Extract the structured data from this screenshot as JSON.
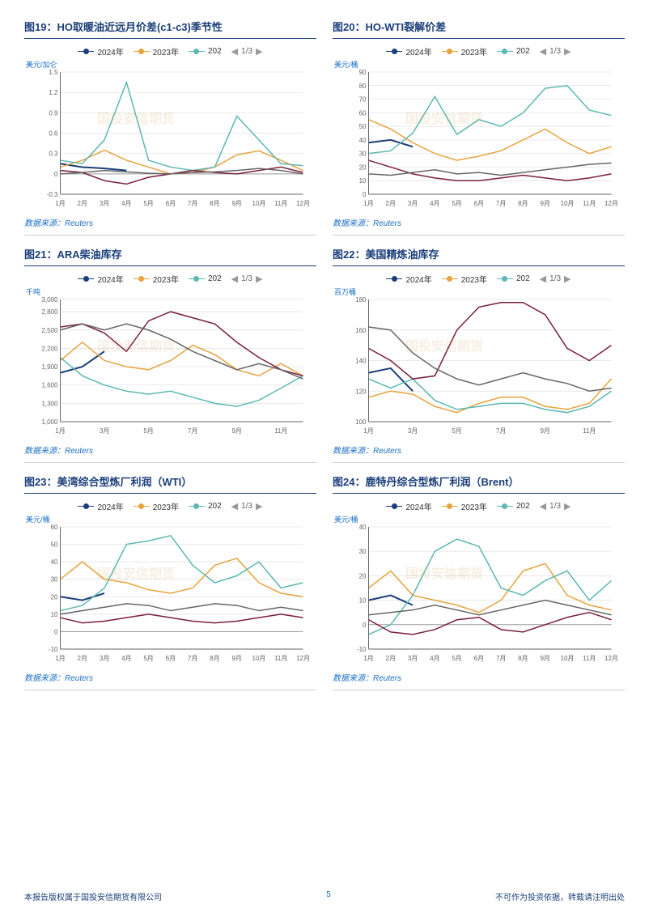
{
  "legend": {
    "s1": "2024年",
    "s2": "2023年",
    "s3": "202",
    "page": "1/3",
    "colors": {
      "s1": "#1a3e7a",
      "s2": "#e8a33d",
      "s3": "#5cb8b2",
      "s4": "#7a1f3d",
      "s5": "#666666"
    }
  },
  "source_label": "数据来源：Reuters",
  "footer": {
    "left": "本报告版权属于国投安信期货有限公司",
    "page": "5",
    "right": "不可作为投资依据，转载请注明出处"
  },
  "watermark": "国投安信期货",
  "months12": [
    "1月",
    "2月",
    "3月",
    "4月",
    "5月",
    "6月",
    "7月",
    "8月",
    "9月",
    "10月",
    "11月",
    "12月"
  ],
  "months6": [
    "1月",
    "3月",
    "5月",
    "7月",
    "9月",
    "11月"
  ],
  "charts": [
    {
      "id": "fig19",
      "title": "图19：HO取暖油近远月价差(c1-c3)季节性",
      "ylabel": "美元/加仑",
      "ylim": [
        -0.3,
        1.5
      ],
      "yticks": [
        -0.3,
        0,
        0.3,
        0.6,
        0.9,
        1.2,
        1.5
      ],
      "xlabels_key": "months12",
      "series": [
        {
          "color": "#1a3e7a",
          "pts": [
            0.15,
            0.1,
            0.08,
            0.05,
            null,
            null,
            null,
            null,
            null,
            null,
            null,
            null
          ],
          "w": 2
        },
        {
          "color": "#e8a33d",
          "pts": [
            0.1,
            0.2,
            0.35,
            0.2,
            0.1,
            0.0,
            0.02,
            0.1,
            0.28,
            0.34,
            0.2,
            0.05
          ],
          "w": 1.5
        },
        {
          "color": "#5cb8b2",
          "pts": [
            0.2,
            0.15,
            0.5,
            1.35,
            0.2,
            0.1,
            0.05,
            0.1,
            0.85,
            0.5,
            0.15,
            0.12
          ],
          "w": 1.5
        },
        {
          "color": "#7a1f3d",
          "pts": [
            0.05,
            0.02,
            -0.1,
            -0.15,
            -0.05,
            0.0,
            0.05,
            0.02,
            0.0,
            0.05,
            0.1,
            0.02
          ],
          "w": 1.5
        },
        {
          "color": "#666666",
          "pts": [
            0.0,
            0.02,
            0.05,
            0.03,
            0.01,
            0.0,
            0.02,
            0.03,
            0.05,
            0.08,
            0.05,
            0.0
          ],
          "w": 1.5
        }
      ]
    },
    {
      "id": "fig20",
      "title": "图20：HO-WTI裂解价差",
      "ylabel": "美元/桶",
      "ylim": [
        0,
        90
      ],
      "yticks": [
        0,
        10,
        20,
        30,
        40,
        50,
        60,
        70,
        80,
        90
      ],
      "xlabels_key": "months12",
      "series": [
        {
          "color": "#1a3e7a",
          "pts": [
            38,
            40,
            35,
            null,
            null,
            null,
            null,
            null,
            null,
            null,
            null,
            null
          ],
          "w": 2
        },
        {
          "color": "#e8a33d",
          "pts": [
            55,
            48,
            38,
            30,
            25,
            28,
            32,
            40,
            48,
            38,
            30,
            35
          ],
          "w": 1.5
        },
        {
          "color": "#5cb8b2",
          "pts": [
            30,
            32,
            45,
            72,
            44,
            55,
            50,
            60,
            78,
            80,
            62,
            58
          ],
          "w": 1.5
        },
        {
          "color": "#7a1f3d",
          "pts": [
            25,
            20,
            15,
            12,
            10,
            10,
            12,
            14,
            12,
            10,
            12,
            15
          ],
          "w": 1.5
        },
        {
          "color": "#666666",
          "pts": [
            15,
            14,
            16,
            18,
            15,
            16,
            14,
            16,
            18,
            20,
            22,
            23
          ],
          "w": 1.5
        }
      ]
    },
    {
      "id": "fig21",
      "title": "图21：ARA柴油库存",
      "ylabel": "千吨",
      "ylim": [
        1000,
        3000
      ],
      "yticks": [
        1000,
        1300,
        1600,
        1900,
        2200,
        2500,
        2800,
        3000
      ],
      "xlabels_key": "months6",
      "series": [
        {
          "color": "#1a3e7a",
          "pts": [
            1800,
            1900,
            2150,
            null,
            null,
            null,
            null,
            null,
            null,
            null,
            null,
            null
          ],
          "w": 2
        },
        {
          "color": "#e8a33d",
          "pts": [
            2000,
            2300,
            2000,
            1900,
            1850,
            2000,
            2250,
            2100,
            1850,
            1750,
            1950,
            1750
          ],
          "w": 1.5
        },
        {
          "color": "#5cb8b2",
          "pts": [
            2050,
            1750,
            1600,
            1500,
            1450,
            1500,
            1400,
            1300,
            1250,
            1350,
            1550,
            1750
          ],
          "w": 1.5
        },
        {
          "color": "#7a1f3d",
          "pts": [
            2550,
            2600,
            2450,
            2150,
            2650,
            2800,
            2700,
            2600,
            2300,
            2050,
            1850,
            1750
          ],
          "w": 1.5
        },
        {
          "color": "#666666",
          "pts": [
            2500,
            2600,
            2500,
            2600,
            2500,
            2350,
            2150,
            2000,
            1850,
            1950,
            1850,
            1700
          ],
          "w": 1.5
        }
      ]
    },
    {
      "id": "fig22",
      "title": "图22：美国精炼油库存",
      "ylabel": "百万桶",
      "ylim": [
        100,
        180
      ],
      "yticks": [
        100,
        120,
        140,
        160,
        180
      ],
      "xlabels_key": "months6",
      "series": [
        {
          "color": "#1a3e7a",
          "pts": [
            132,
            135,
            120,
            null,
            null,
            null,
            null,
            null,
            null,
            null,
            null,
            null
          ],
          "w": 2
        },
        {
          "color": "#e8a33d",
          "pts": [
            116,
            120,
            118,
            110,
            106,
            112,
            116,
            116,
            110,
            108,
            112,
            128
          ],
          "w": 1.5
        },
        {
          "color": "#5cb8b2",
          "pts": [
            128,
            122,
            128,
            114,
            108,
            110,
            112,
            112,
            108,
            106,
            110,
            120
          ],
          "w": 1.5
        },
        {
          "color": "#7a1f3d",
          "pts": [
            148,
            140,
            128,
            130,
            160,
            175,
            178,
            178,
            170,
            148,
            140,
            150
          ],
          "w": 1.5
        },
        {
          "color": "#666666",
          "pts": [
            162,
            160,
            145,
            135,
            128,
            124,
            128,
            132,
            128,
            125,
            120,
            122
          ],
          "w": 1.5
        }
      ]
    },
    {
      "id": "fig23",
      "title": "图23：美湾综合型炼厂利润（WTI）",
      "ylabel": "美元/桶",
      "ylim": [
        -10,
        60
      ],
      "yticks": [
        -10,
        0,
        10,
        20,
        30,
        40,
        50,
        60
      ],
      "xlabels_key": "months12",
      "series": [
        {
          "color": "#1a3e7a",
          "pts": [
            20,
            18,
            22,
            null,
            null,
            null,
            null,
            null,
            null,
            null,
            null,
            null
          ],
          "w": 2
        },
        {
          "color": "#e8a33d",
          "pts": [
            30,
            40,
            30,
            28,
            24,
            22,
            25,
            38,
            42,
            28,
            22,
            20
          ],
          "w": 1.5
        },
        {
          "color": "#5cb8b2",
          "pts": [
            12,
            15,
            25,
            50,
            52,
            55,
            38,
            28,
            32,
            40,
            25,
            28
          ],
          "w": 1.5
        },
        {
          "color": "#7a1f3d",
          "pts": [
            8,
            5,
            6,
            8,
            10,
            8,
            6,
            5,
            6,
            8,
            10,
            8
          ],
          "w": 1.5
        },
        {
          "color": "#666666",
          "pts": [
            10,
            12,
            14,
            16,
            15,
            12,
            14,
            16,
            15,
            12,
            14,
            12
          ],
          "w": 1.5
        }
      ]
    },
    {
      "id": "fig24",
      "title": "图24：鹿特丹综合型炼厂利润（Brent）",
      "ylabel": "美元/桶",
      "ylim": [
        -10,
        40
      ],
      "yticks": [
        -10,
        0,
        10,
        20,
        30,
        40
      ],
      "xlabels_key": "months12",
      "series": [
        {
          "color": "#1a3e7a",
          "pts": [
            10,
            12,
            8,
            null,
            null,
            null,
            null,
            null,
            null,
            null,
            null,
            null
          ],
          "w": 2
        },
        {
          "color": "#e8a33d",
          "pts": [
            15,
            22,
            12,
            10,
            8,
            5,
            10,
            22,
            25,
            12,
            8,
            6
          ],
          "w": 1.5
        },
        {
          "color": "#5cb8b2",
          "pts": [
            -4,
            0,
            12,
            30,
            35,
            32,
            15,
            12,
            18,
            22,
            10,
            18
          ],
          "w": 1.5
        },
        {
          "color": "#7a1f3d",
          "pts": [
            2,
            -3,
            -4,
            -2,
            2,
            3,
            -2,
            -3,
            0,
            3,
            5,
            2
          ],
          "w": 1.5
        },
        {
          "color": "#666666",
          "pts": [
            4,
            5,
            6,
            8,
            6,
            4,
            6,
            8,
            10,
            8,
            6,
            4
          ],
          "w": 1.5
        }
      ]
    }
  ]
}
